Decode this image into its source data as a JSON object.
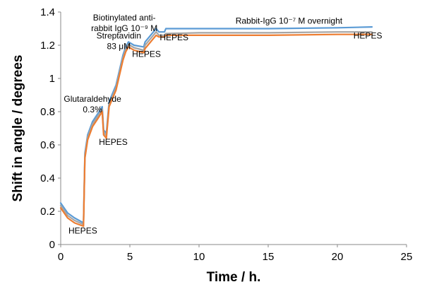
{
  "chart_data": {
    "type": "line",
    "title": "",
    "xlabel": "Time / h.",
    "ylabel": "Shift in angle / degrees",
    "xlim": [
      0,
      25
    ],
    "ylim": [
      0,
      1.4
    ],
    "x_ticks": [
      "0",
      "5",
      "10",
      "15",
      "20",
      "25"
    ],
    "y_ticks": [
      "0",
      "0.2",
      "0.4",
      "0.6",
      "0.8",
      "1",
      "1.2",
      "1.4"
    ],
    "grid": false,
    "legend": "none",
    "colors": {
      "blue": "#5b9bd5",
      "gray": "#a5a5a5",
      "orange": "#ed7d31"
    },
    "series": [
      {
        "color": "blue",
        "points": [
          [
            0,
            0.25
          ],
          [
            0.5,
            0.19
          ],
          [
            1.0,
            0.16
          ],
          [
            1.65,
            0.13
          ],
          [
            1.75,
            0.55
          ],
          [
            1.95,
            0.66
          ],
          [
            2.3,
            0.74
          ],
          [
            2.7,
            0.79
          ],
          [
            3.0,
            0.83
          ],
          [
            3.1,
            0.69
          ],
          [
            3.3,
            0.67
          ],
          [
            3.5,
            0.86
          ],
          [
            4.0,
            0.96
          ],
          [
            4.5,
            1.14
          ],
          [
            4.7,
            1.19
          ],
          [
            4.9,
            1.22
          ],
          [
            5.3,
            1.2
          ],
          [
            6.0,
            1.19
          ],
          [
            6.1,
            1.22
          ],
          [
            6.5,
            1.26
          ],
          [
            6.9,
            1.3
          ],
          [
            7.1,
            1.28
          ],
          [
            7.5,
            1.28
          ],
          [
            7.6,
            1.3
          ],
          [
            10,
            1.3
          ],
          [
            15,
            1.3
          ],
          [
            20,
            1.305
          ],
          [
            22.5,
            1.31
          ]
        ]
      },
      {
        "color": "gray",
        "points": [
          [
            0,
            0.235
          ],
          [
            0.5,
            0.175
          ],
          [
            1.0,
            0.145
          ],
          [
            1.65,
            0.12
          ],
          [
            1.75,
            0.54
          ],
          [
            1.95,
            0.645
          ],
          [
            2.3,
            0.725
          ],
          [
            2.7,
            0.775
          ],
          [
            3.0,
            0.815
          ],
          [
            3.1,
            0.675
          ],
          [
            3.3,
            0.655
          ],
          [
            3.5,
            0.845
          ],
          [
            4.0,
            0.945
          ],
          [
            4.5,
            1.125
          ],
          [
            4.7,
            1.175
          ],
          [
            4.9,
            1.205
          ],
          [
            5.3,
            1.185
          ],
          [
            6.0,
            1.17
          ],
          [
            6.1,
            1.2
          ],
          [
            6.5,
            1.24
          ],
          [
            6.9,
            1.28
          ],
          [
            7.1,
            1.26
          ],
          [
            7.5,
            1.26
          ],
          [
            7.6,
            1.27
          ],
          [
            10,
            1.275
          ],
          [
            15,
            1.275
          ],
          [
            20,
            1.28
          ],
          [
            22.5,
            1.28
          ]
        ]
      },
      {
        "color": "orange",
        "points": [
          [
            0,
            0.22
          ],
          [
            0.5,
            0.16
          ],
          [
            1.0,
            0.13
          ],
          [
            1.65,
            0.11
          ],
          [
            1.75,
            0.52
          ],
          [
            1.95,
            0.63
          ],
          [
            2.3,
            0.71
          ],
          [
            2.7,
            0.76
          ],
          [
            3.0,
            0.8
          ],
          [
            3.1,
            0.66
          ],
          [
            3.3,
            0.64
          ],
          [
            3.5,
            0.83
          ],
          [
            4.0,
            0.93
          ],
          [
            4.5,
            1.11
          ],
          [
            4.7,
            1.16
          ],
          [
            4.9,
            1.19
          ],
          [
            5.3,
            1.17
          ],
          [
            6.0,
            1.155
          ],
          [
            6.1,
            1.18
          ],
          [
            6.5,
            1.22
          ],
          [
            6.9,
            1.26
          ],
          [
            7.1,
            1.25
          ],
          [
            7.5,
            1.25
          ],
          [
            7.6,
            1.26
          ],
          [
            10,
            1.26
          ],
          [
            15,
            1.26
          ],
          [
            20,
            1.265
          ],
          [
            22.5,
            1.265
          ]
        ]
      }
    ],
    "annotations": [
      {
        "lines": [
          "HEPES"
        ],
        "x": 1.6,
        "y": 0.065
      },
      {
        "lines": [
          "Glutaraldehyde",
          "0.3%"
        ],
        "x": 2.3,
        "y": 0.86
      },
      {
        "lines": [
          "HEPES"
        ],
        "x": 3.8,
        "y": 0.6
      },
      {
        "lines": [
          "Streptavidin",
          "83 μM"
        ],
        "x": 4.2,
        "y": 1.24
      },
      {
        "lines": [
          "HEPES"
        ],
        "x": 6.2,
        "y": 1.13
      },
      {
        "lines": [
          "Biotinylated anti-",
          "rabbit IgG  10⁻⁹ M"
        ],
        "x": 4.6,
        "y": 1.35
      },
      {
        "lines": [
          "HEPES"
        ],
        "x": 8.2,
        "y": 1.23
      },
      {
        "lines": [
          "Rabbit-IgG  10⁻⁷ M overnight"
        ],
        "x": 16.5,
        "y": 1.33
      },
      {
        "lines": [
          "HEPES"
        ],
        "x": 22.2,
        "y": 1.24
      }
    ]
  }
}
